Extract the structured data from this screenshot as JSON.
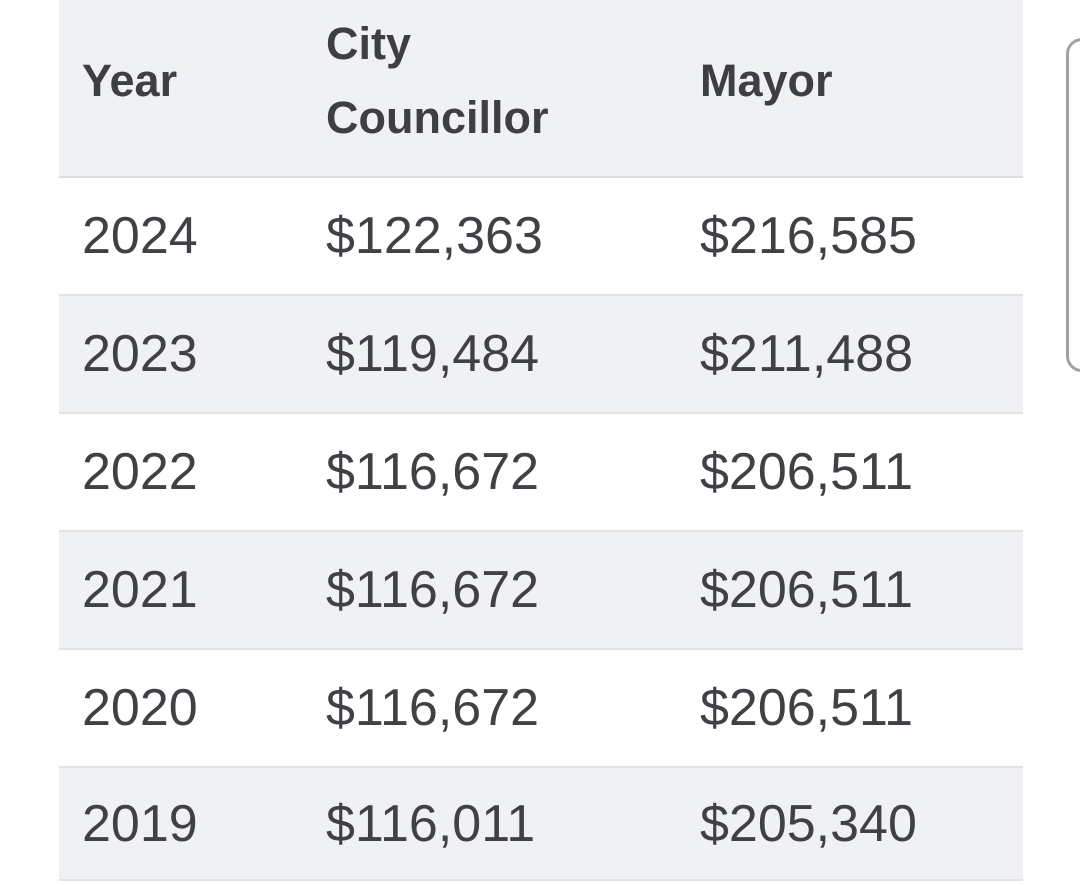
{
  "table": {
    "columns": [
      "Year",
      "City Councillor",
      "Mayor"
    ],
    "rows": [
      {
        "year": "2024",
        "city_councillor": "$122,363",
        "mayor": "$216,585"
      },
      {
        "year": "2023",
        "city_councillor": "$119,484",
        "mayor": "$211,488"
      },
      {
        "year": "2022",
        "city_councillor": "$116,672",
        "mayor": "$206,511"
      },
      {
        "year": "2021",
        "city_councillor": "$116,672",
        "mayor": "$206,511"
      },
      {
        "year": "2020",
        "city_councillor": "$116,672",
        "mayor": "$206,511"
      },
      {
        "year": "2019",
        "city_councillor": "$116,011",
        "mayor": "$205,340"
      }
    ]
  },
  "colors": {
    "header_background": "#f0f1f2",
    "row_alt_background": "#f0f1f2",
    "row_background": "#ffffff",
    "text": "#404145",
    "row_border": "#e2e3e4",
    "scrollbar_border": "#a2a2a2"
  }
}
